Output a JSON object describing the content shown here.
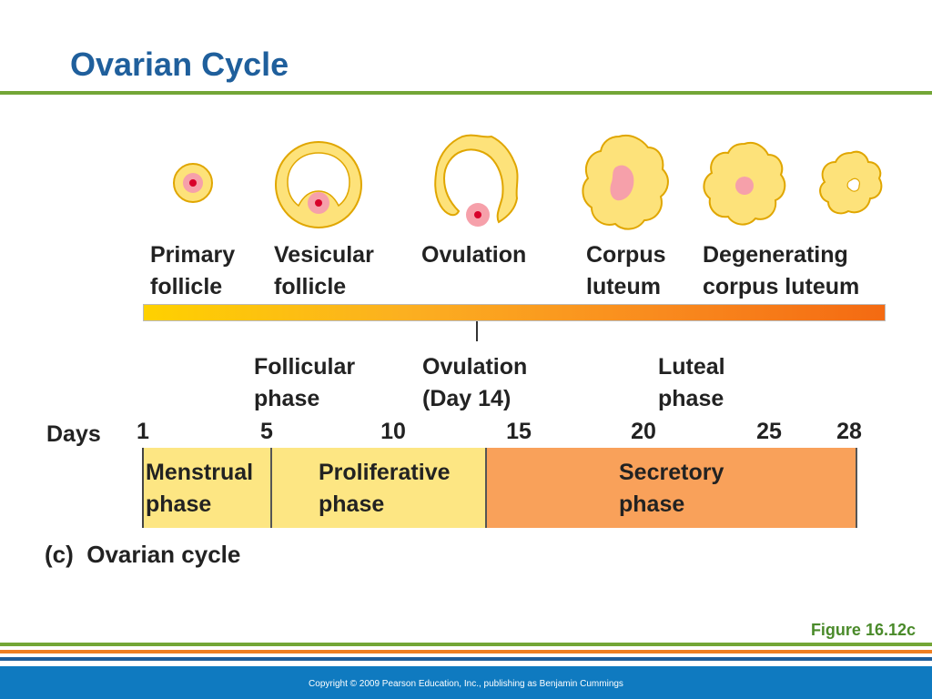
{
  "title": "Ovarian Cycle",
  "stages": [
    {
      "label": "Primary\nfollicle"
    },
    {
      "label": "Vesicular\nfollicle"
    },
    {
      "label": "Ovulation"
    },
    {
      "label": "Corpus\nluteum"
    },
    {
      "label": "Degenerating\ncorpus luteum"
    }
  ],
  "phases": {
    "follicular": "Follicular\nphase",
    "ovulation": "Ovulation\n(Day 14)",
    "luteal": "Luteal\nphase"
  },
  "days": {
    "label": "Days",
    "ticks": [
      "1",
      "5",
      "10",
      "15",
      "20",
      "25",
      "28"
    ]
  },
  "uterine_phases": {
    "menstrual": "Menstrual\nphase",
    "proliferative": "Proliferative\nphase",
    "secretory": "Secretory\nphase"
  },
  "colors": {
    "title": "#1f5f9c",
    "follicle_fill": "#fde27a",
    "follicle_stroke": "#e0a600",
    "oocyte": "#f6a0aa",
    "nucleus": "#d8002a",
    "menstrual_box": "#fde683",
    "secretory_box": "#f9a15a"
  },
  "caption": "(c)  Ovarian cycle",
  "figure_number": "Figure 16.12c",
  "copyright": "Copyright © 2009 Pearson Education, Inc., publishing as Benjamin Cummings"
}
